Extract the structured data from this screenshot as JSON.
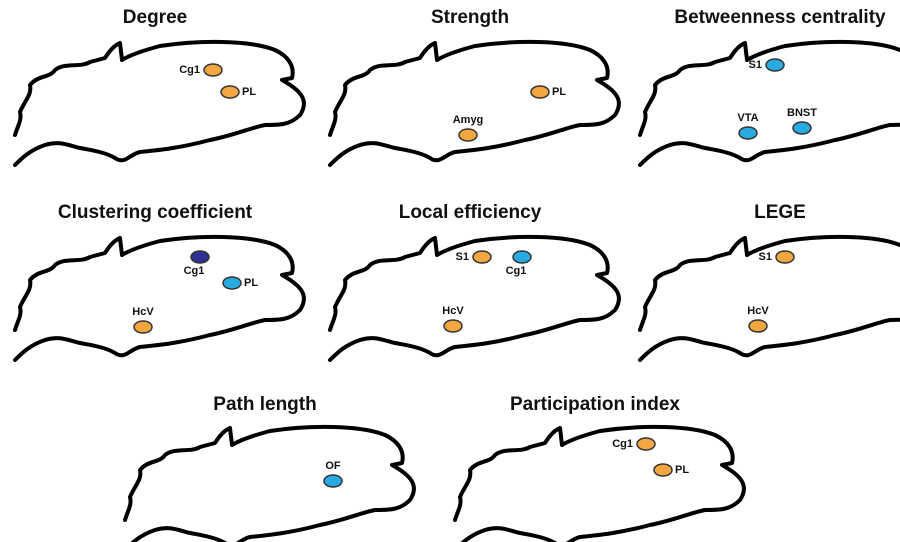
{
  "panels": [
    {
      "title": "Degree",
      "regions": [
        {
          "label": "Cg1",
          "color": "#f4a640"
        },
        {
          "label": "PL",
          "color": "#f4a640"
        }
      ]
    },
    {
      "title": "Strength",
      "regions": [
        {
          "label": "PL",
          "color": "#f4a640"
        },
        {
          "label": "Amyg",
          "color": "#f4a640"
        }
      ]
    },
    {
      "title": "Betweenness centrality",
      "regions": [
        {
          "label": "S1",
          "color": "#29abe2"
        },
        {
          "label": "VTA",
          "color": "#29abe2"
        },
        {
          "label": "BNST",
          "color": "#29abe2"
        }
      ]
    },
    {
      "title": "Clustering coefficient",
      "regions": [
        {
          "label": "Cg1",
          "color": "#2e3192"
        },
        {
          "label": "PL",
          "color": "#29abe2"
        },
        {
          "label": "HcV",
          "color": "#f4a640"
        }
      ]
    },
    {
      "title": "Local efficiency",
      "regions": [
        {
          "label": "S1",
          "color": "#f4a640"
        },
        {
          "label": "Cg1",
          "color": "#29abe2"
        },
        {
          "label": "HcV",
          "color": "#f4a640"
        }
      ]
    },
    {
      "title": "LEGE",
      "regions": [
        {
          "label": "S1",
          "color": "#f4a640"
        },
        {
          "label": "HcV",
          "color": "#f4a640"
        }
      ]
    },
    {
      "title": "Path length",
      "regions": [
        {
          "label": "OF",
          "color": "#29abe2"
        }
      ]
    },
    {
      "title": "Participation index",
      "regions": [
        {
          "label": "Cg1",
          "color": "#f4a640"
        },
        {
          "label": "PL",
          "color": "#f4a640"
        }
      ]
    }
  ]
}
